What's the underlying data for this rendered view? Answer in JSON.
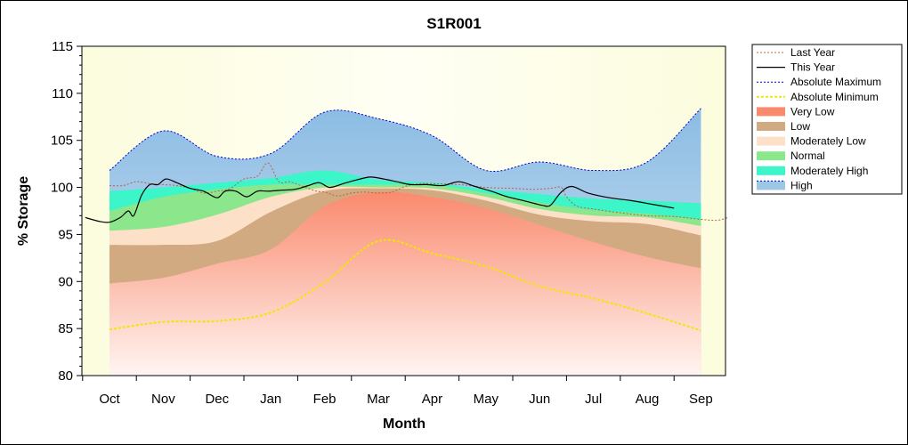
{
  "chart_data": {
    "type": "area",
    "title": "S1R001",
    "xlabel": "Month",
    "ylabel": "% Storage",
    "ylim": [
      80,
      115
    ],
    "yticks": [
      80,
      85,
      90,
      95,
      100,
      105,
      110,
      115
    ],
    "categories": [
      "Oct",
      "Nov",
      "Dec",
      "Jan",
      "Feb",
      "Mar",
      "Apr",
      "May",
      "Jun",
      "Jul",
      "Aug",
      "Sep"
    ],
    "grid": false,
    "legend_position": "right",
    "colors": {
      "plot_background": "#fdfde4",
      "very_low": "#fa8a6e",
      "low": "#d2aa82",
      "moderately_low": "#fde0c8",
      "normal": "#8ce68c",
      "moderately_high": "#3cf5c8",
      "high": "#9cc8e6",
      "absolute_maximum": "#0000cc",
      "absolute_minimum": "#f2e600",
      "last_year": "#b4643c",
      "this_year": "#000000"
    },
    "bands": {
      "very_low_top": [
        89.8,
        90.4,
        91.9,
        93.4,
        98.0,
        99.5,
        99.0,
        97.8,
        96.0,
        94.2,
        92.6,
        91.4
      ],
      "low_top": [
        93.9,
        93.9,
        94.3,
        97.4,
        99.6,
        99.9,
        99.7,
        98.6,
        97.1,
        96.4,
        96.1,
        94.9
      ],
      "moderately_low_top": [
        95.4,
        95.8,
        97.1,
        99.0,
        100.0,
        100.0,
        99.9,
        99.0,
        97.7,
        97.0,
        96.8,
        95.9
      ],
      "normal_top": [
        97.5,
        99.0,
        99.8,
        100.3,
        100.3,
        100.3,
        100.3,
        99.4,
        98.4,
        97.6,
        97.2,
        96.6
      ],
      "moderately_high_top": [
        99.6,
        100.0,
        100.5,
        101.0,
        101.8,
        100.8,
        100.5,
        99.8,
        99.3,
        98.8,
        98.6,
        98.3
      ],
      "high_top": [
        101.8,
        106.0,
        103.3,
        103.6,
        108.0,
        107.3,
        105.5,
        101.8,
        102.7,
        101.8,
        102.7,
        108.4
      ]
    },
    "series": [
      {
        "name": "Last Year",
        "x": [
          0,
          0.25,
          0.5,
          0.75,
          1,
          1.25,
          1.5,
          1.75,
          2,
          2.25,
          2.5,
          2.75,
          2.95,
          3.15,
          3.35,
          3.6,
          3.85,
          4,
          4.25,
          4.5,
          4.75,
          5,
          5.25,
          5.5,
          5.75,
          6,
          6.5,
          7,
          7.5,
          7.9,
          8.2,
          8.4,
          8.5,
          8.7,
          9,
          9.5,
          10,
          10.5,
          11,
          11.3,
          11.5
        ],
        "values": [
          100.2,
          100.2,
          100.6,
          100.4,
          100.3,
          100.2,
          99.9,
          99.4,
          99.6,
          99.9,
          100.9,
          101.2,
          102.6,
          100.6,
          100.6,
          100.1,
          99.6,
          99.5,
          99.1,
          99.4,
          99.5,
          99.4,
          99.5,
          100.1,
          100.4,
          100.4,
          100.3,
          100.0,
          99.9,
          99.8,
          99.9,
          100.0,
          99.0,
          98.0,
          97.7,
          97.3,
          97.0,
          96.9,
          96.6,
          96.5,
          96.8
        ]
      },
      {
        "name": "This Year",
        "x": [
          -0.45,
          -0.2,
          0,
          0.2,
          0.35,
          0.45,
          0.6,
          0.75,
          0.9,
          1.05,
          1.25,
          1.5,
          1.75,
          2,
          2.15,
          2.35,
          2.55,
          2.75,
          2.95,
          3.2,
          3.45,
          3.7,
          3.9,
          4.1,
          4.35,
          4.6,
          4.85,
          5.1,
          5.35,
          5.6,
          5.9,
          6.2,
          6.5,
          6.8,
          7.1,
          7.4,
          7.7,
          7.9,
          8.05,
          8.2,
          8.4,
          8.6,
          8.9,
          9.3,
          9.7,
          10.1,
          10.5
        ],
        "values": [
          96.8,
          96.4,
          96.3,
          96.8,
          97.5,
          97.0,
          99.2,
          100.3,
          100.3,
          100.9,
          100.5,
          99.9,
          99.6,
          98.9,
          99.6,
          99.6,
          99.0,
          99.6,
          99.6,
          99.7,
          99.8,
          100.2,
          100.5,
          100.0,
          100.4,
          100.8,
          101.1,
          100.9,
          100.6,
          100.3,
          100.3,
          100.2,
          100.6,
          100.1,
          99.6,
          99.0,
          98.6,
          98.3,
          98.1,
          98.1,
          99.5,
          100.1,
          99.4,
          98.9,
          98.6,
          98.2,
          97.8
        ]
      },
      {
        "name": "Absolute Maximum",
        "values": [
          101.8,
          106.0,
          103.3,
          103.6,
          108.0,
          107.3,
          105.5,
          101.8,
          102.7,
          101.8,
          102.7,
          108.4
        ]
      },
      {
        "name": "Absolute Minimum",
        "values": [
          84.9,
          85.7,
          85.8,
          86.7,
          89.9,
          94.3,
          93.0,
          91.6,
          89.5,
          88.2,
          86.6,
          84.8
        ]
      }
    ],
    "legend": [
      "Last Year",
      "This Year",
      "Absolute Maximum",
      "Absolute Minimum",
      "Very Low",
      "Low",
      "Moderately Low",
      "Normal",
      "Moderately High",
      "High"
    ]
  }
}
